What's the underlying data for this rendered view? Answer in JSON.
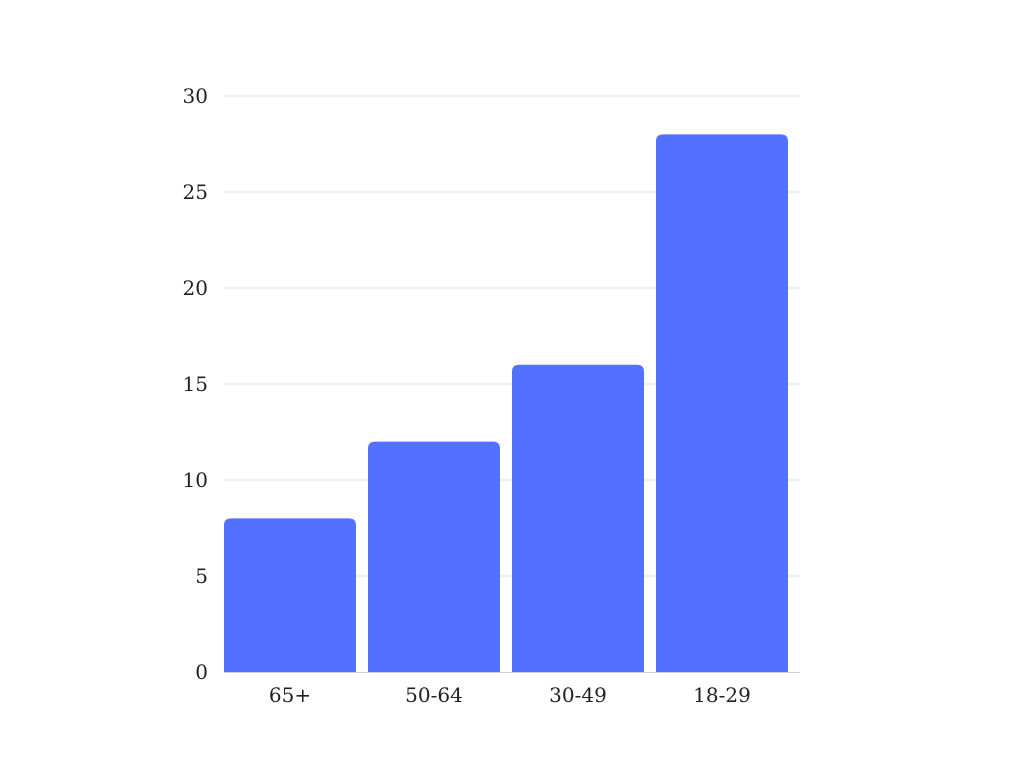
{
  "chart_data": {
    "type": "bar",
    "title": "",
    "xlabel": "",
    "ylabel": "",
    "categories": [
      "65+",
      "50-64",
      "30-49",
      "18-29"
    ],
    "values": [
      8,
      12,
      16,
      28
    ],
    "ylim": [
      0,
      30
    ],
    "yticks": [
      0,
      5,
      10,
      15,
      20,
      25,
      30
    ],
    "ytick_labels": [
      "0",
      "5",
      "10",
      "15",
      "20",
      "25",
      "30"
    ],
    "grid": true,
    "legend": "none",
    "colors": {
      "bar": "#5271ff",
      "grid": "#dedede",
      "text": "#222222"
    }
  }
}
